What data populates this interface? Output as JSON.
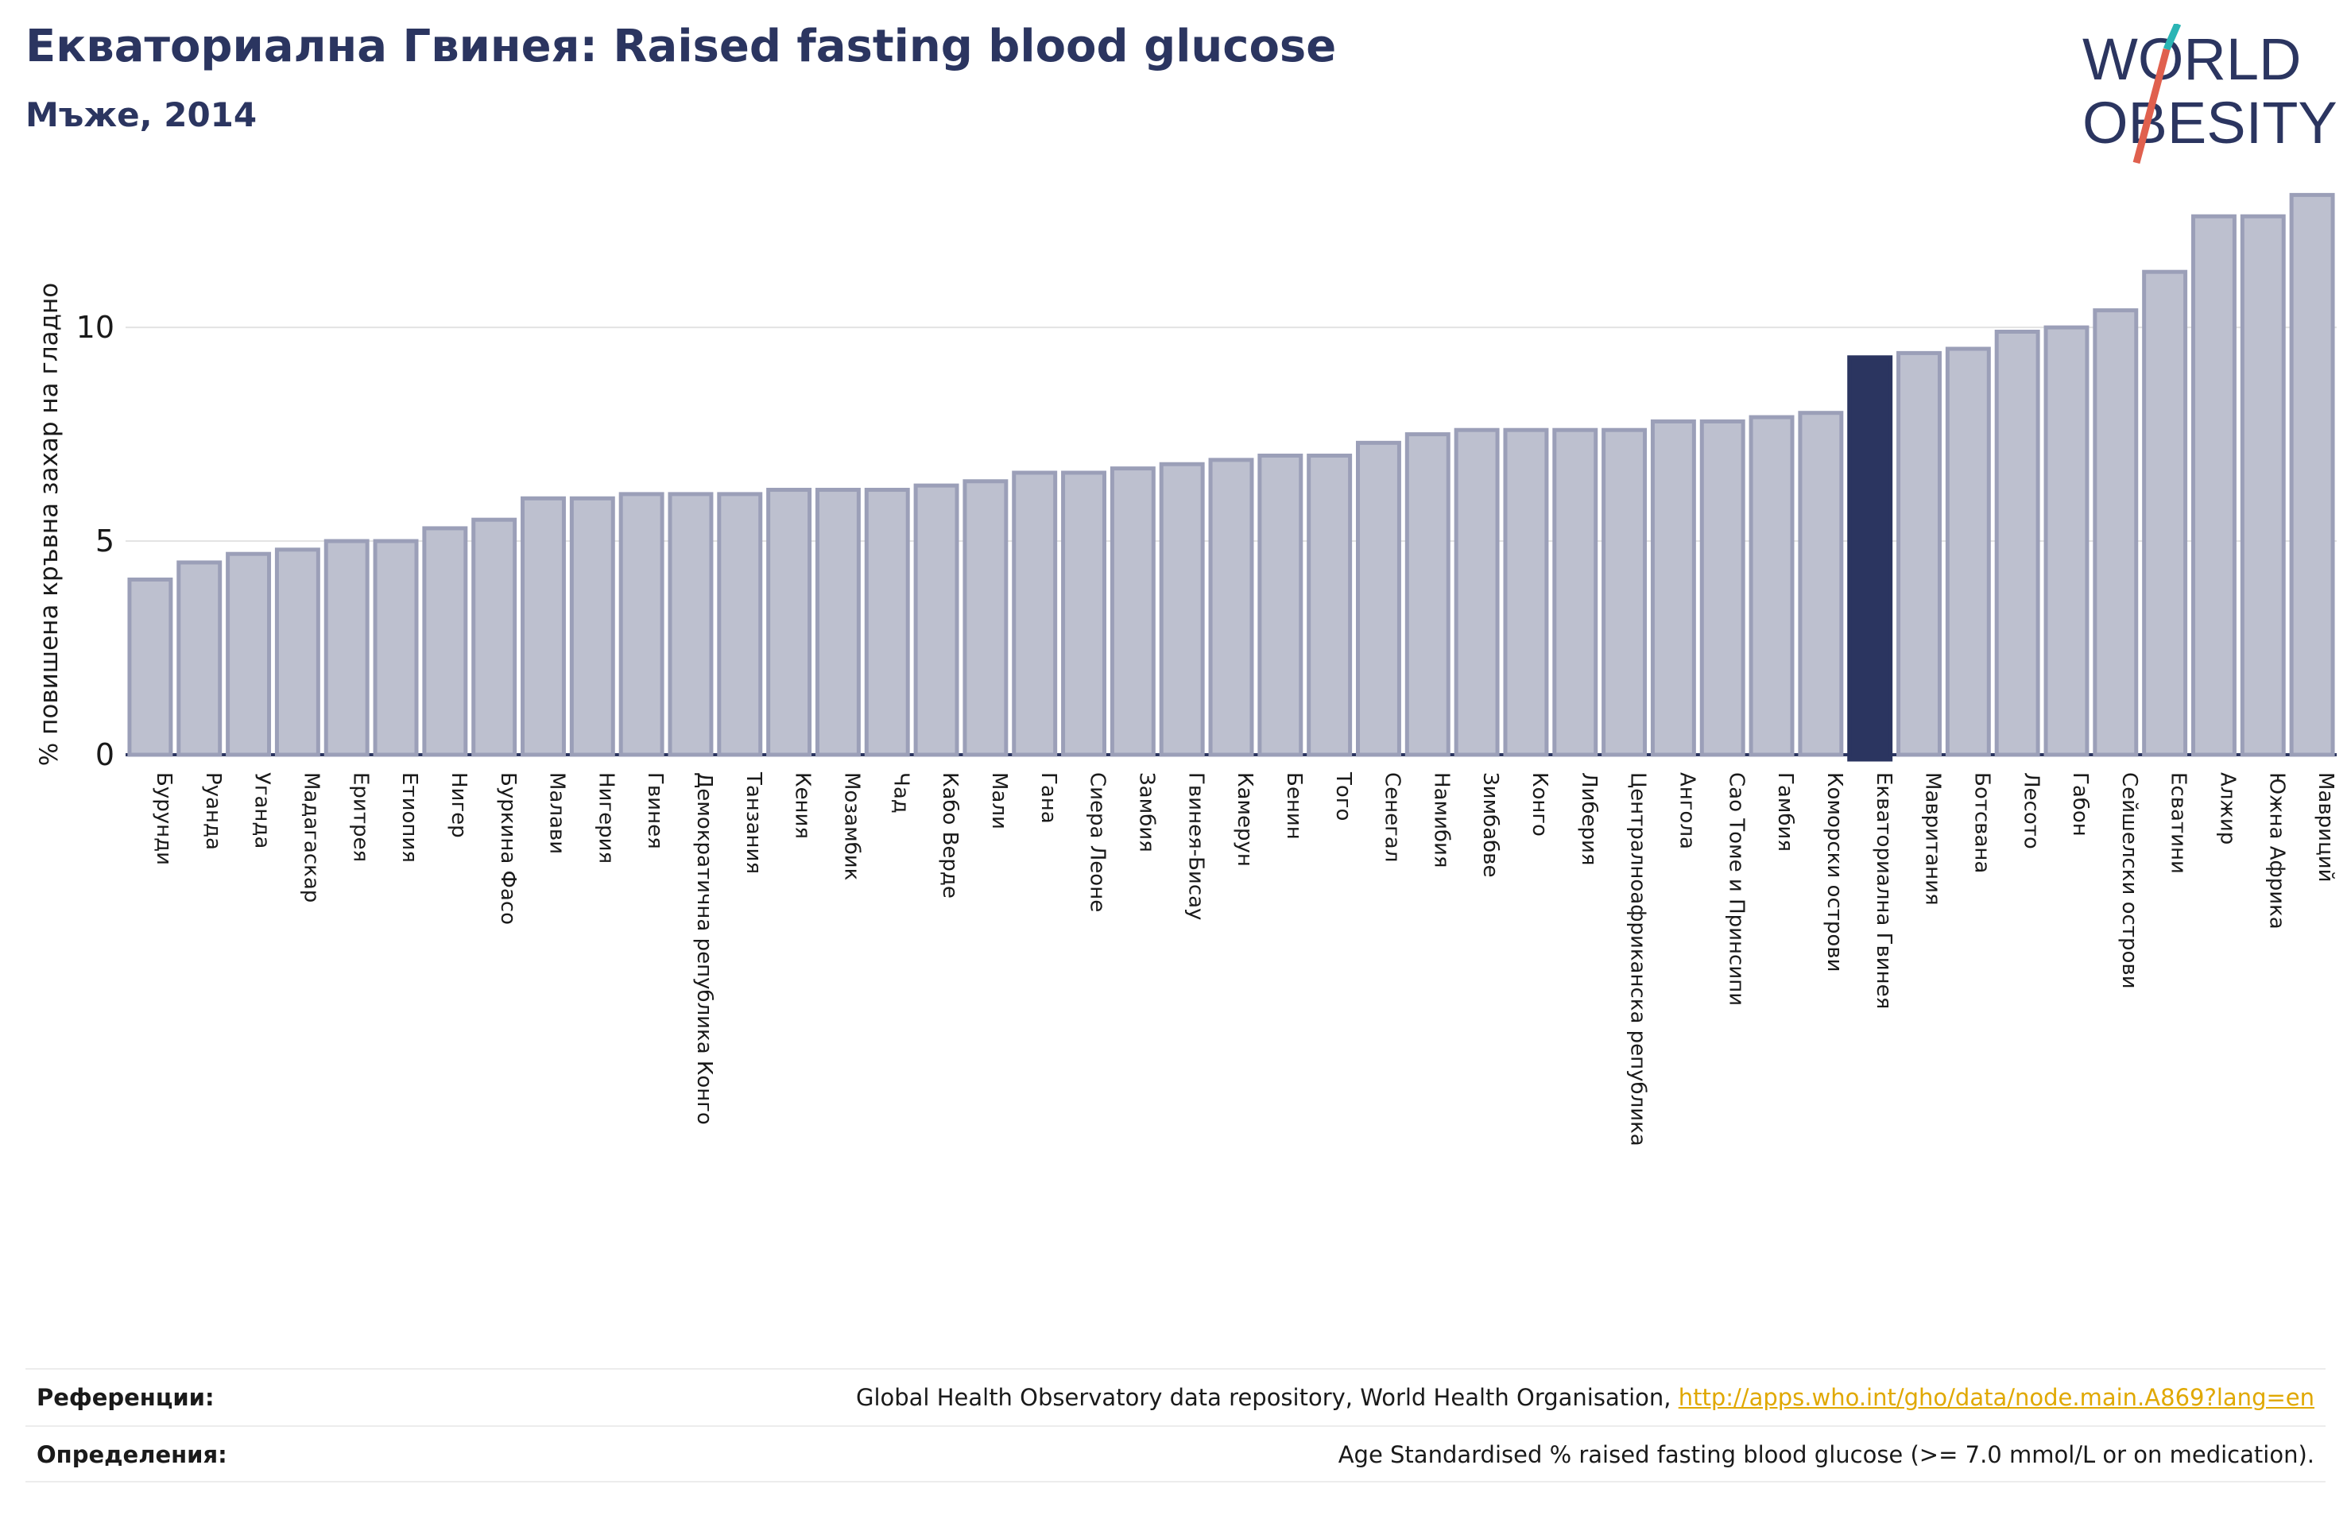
{
  "header": {
    "title": "Екваториална Гвинея: Raised fasting blood glucose",
    "subtitle": "Мъже, 2014"
  },
  "logo": {
    "line1": "WORLD",
    "line2": "OBESITY"
  },
  "colors": {
    "bar": "#bdc0cf",
    "bar_stroke": "#9b9fb8",
    "highlight": "#2b3560",
    "title": "#2b3560",
    "link": "#e0a800",
    "logo_teal": "#2bb5b5",
    "logo_red": "#e0604e"
  },
  "chart_data": {
    "type": "bar",
    "ylabel": "% повишена кръвна захар на гладно",
    "ylim": [
      0,
      13.2
    ],
    "yticks": [
      0,
      5,
      10
    ],
    "grid": true,
    "highlight": "Екваториална Гвинея",
    "categories": [
      "Бурунди",
      "Руанда",
      "Уганда",
      "Мадагаскар",
      "Еритрея",
      "Етиопия",
      "Нигер",
      "Буркина Фасо",
      "Малави",
      "Нигерия",
      "Гвинея",
      "Демократична република Конго",
      "Танзания",
      "Кения",
      "Мозамбик",
      "Чад",
      "Кабо Верде",
      "Мали",
      "Гана",
      "Сиера Леоне",
      "Замбия",
      "Гвинея-Бисау",
      "Камерун",
      "Бенин",
      "Того",
      "Сенегал",
      "Намибия",
      "Зимбабве",
      "Конго",
      "Либерия",
      "Централноафриканска република",
      "Ангола",
      "Сао Томе и Принсипи",
      "Гамбия",
      "Коморски острови",
      "Екваториална Гвинея",
      "Мавритания",
      "Ботсвана",
      "Лесото",
      "Габон",
      "Сейшелски острови",
      "Есватини",
      "Алжир",
      "Южна Африка",
      "Мавриций"
    ],
    "values": [
      4.1,
      4.5,
      4.7,
      4.8,
      5.0,
      5.0,
      5.3,
      5.5,
      6.0,
      6.0,
      6.1,
      6.1,
      6.1,
      6.2,
      6.2,
      6.2,
      6.3,
      6.4,
      6.6,
      6.6,
      6.7,
      6.8,
      6.9,
      7.0,
      7.0,
      7.3,
      7.5,
      7.6,
      7.6,
      7.6,
      7.6,
      7.8,
      7.8,
      7.9,
      8.0,
      9.3,
      9.4,
      9.5,
      9.9,
      10.0,
      10.4,
      11.3,
      12.6,
      12.6,
      13.1
    ]
  },
  "footer": {
    "references_label": "Референции:",
    "references_text": "Global Health Observatory data repository, World Health Organisation, ",
    "references_link": "http://apps.who.int/gho/data/node.main.A869?lang=en",
    "definitions_label": "Определения:",
    "definitions_text": "Age Standardised % raised fasting blood glucose (>= 7.0 mmol/L or on medication)."
  }
}
